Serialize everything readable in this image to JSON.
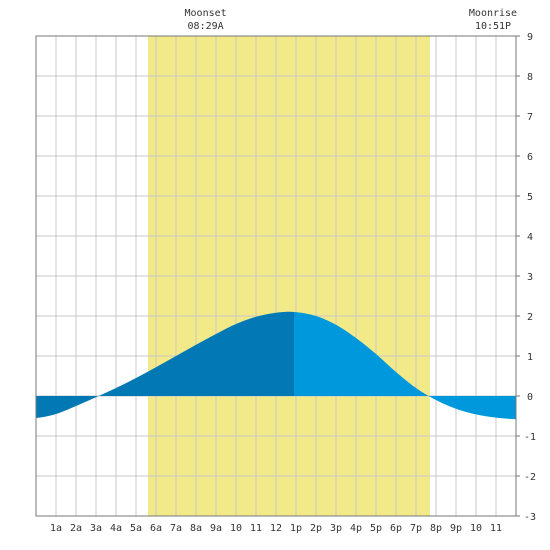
{
  "chart_data": {
    "type": "area",
    "title": "",
    "xlabel": "",
    "ylabel": "",
    "x_tick_labels": [
      "1a",
      "2a",
      "3a",
      "4a",
      "5a",
      "6a",
      "7a",
      "8a",
      "9a",
      "10",
      "11",
      "12",
      "1p",
      "2p",
      "3p",
      "4p",
      "5p",
      "6p",
      "7p",
      "8p",
      "9p",
      "10",
      "11"
    ],
    "xlim_hours": [
      0,
      24
    ],
    "ylim": [
      -3,
      9
    ],
    "y_ticks": [
      -3,
      -2,
      -1,
      0,
      1,
      2,
      3,
      4,
      5,
      6,
      7,
      8,
      9
    ],
    "daylight_hours": [
      5.6,
      19.7
    ],
    "series": [
      {
        "x_hours": [
          0,
          1,
          2,
          3,
          4,
          5,
          6,
          7,
          8,
          9,
          10,
          11,
          12,
          12.9,
          14,
          15,
          16,
          17,
          18,
          19,
          20,
          21,
          22,
          23,
          24
        ],
        "values": [
          -0.55,
          -0.45,
          -0.25,
          -0.03,
          0.2,
          0.45,
          0.72,
          1.0,
          1.28,
          1.55,
          1.8,
          1.98,
          2.08,
          2.1,
          2.0,
          1.78,
          1.45,
          1.05,
          0.6,
          0.2,
          -0.1,
          -0.32,
          -0.46,
          -0.54,
          -0.58
        ]
      }
    ],
    "split_hour": 12.9,
    "annotations": [
      {
        "label": "Moonset",
        "time": "08:29A",
        "hour": 8.48
      },
      {
        "label": "Moonrise",
        "time": "10:51P",
        "hour": 22.85
      }
    ],
    "grid": true
  },
  "colors": {
    "daylight": "#f2ea88",
    "tide_dark": "#0278b4",
    "tide_light": "#0098dc",
    "grid": "#c8c8c8",
    "border": "#777777",
    "text": "#333333"
  }
}
